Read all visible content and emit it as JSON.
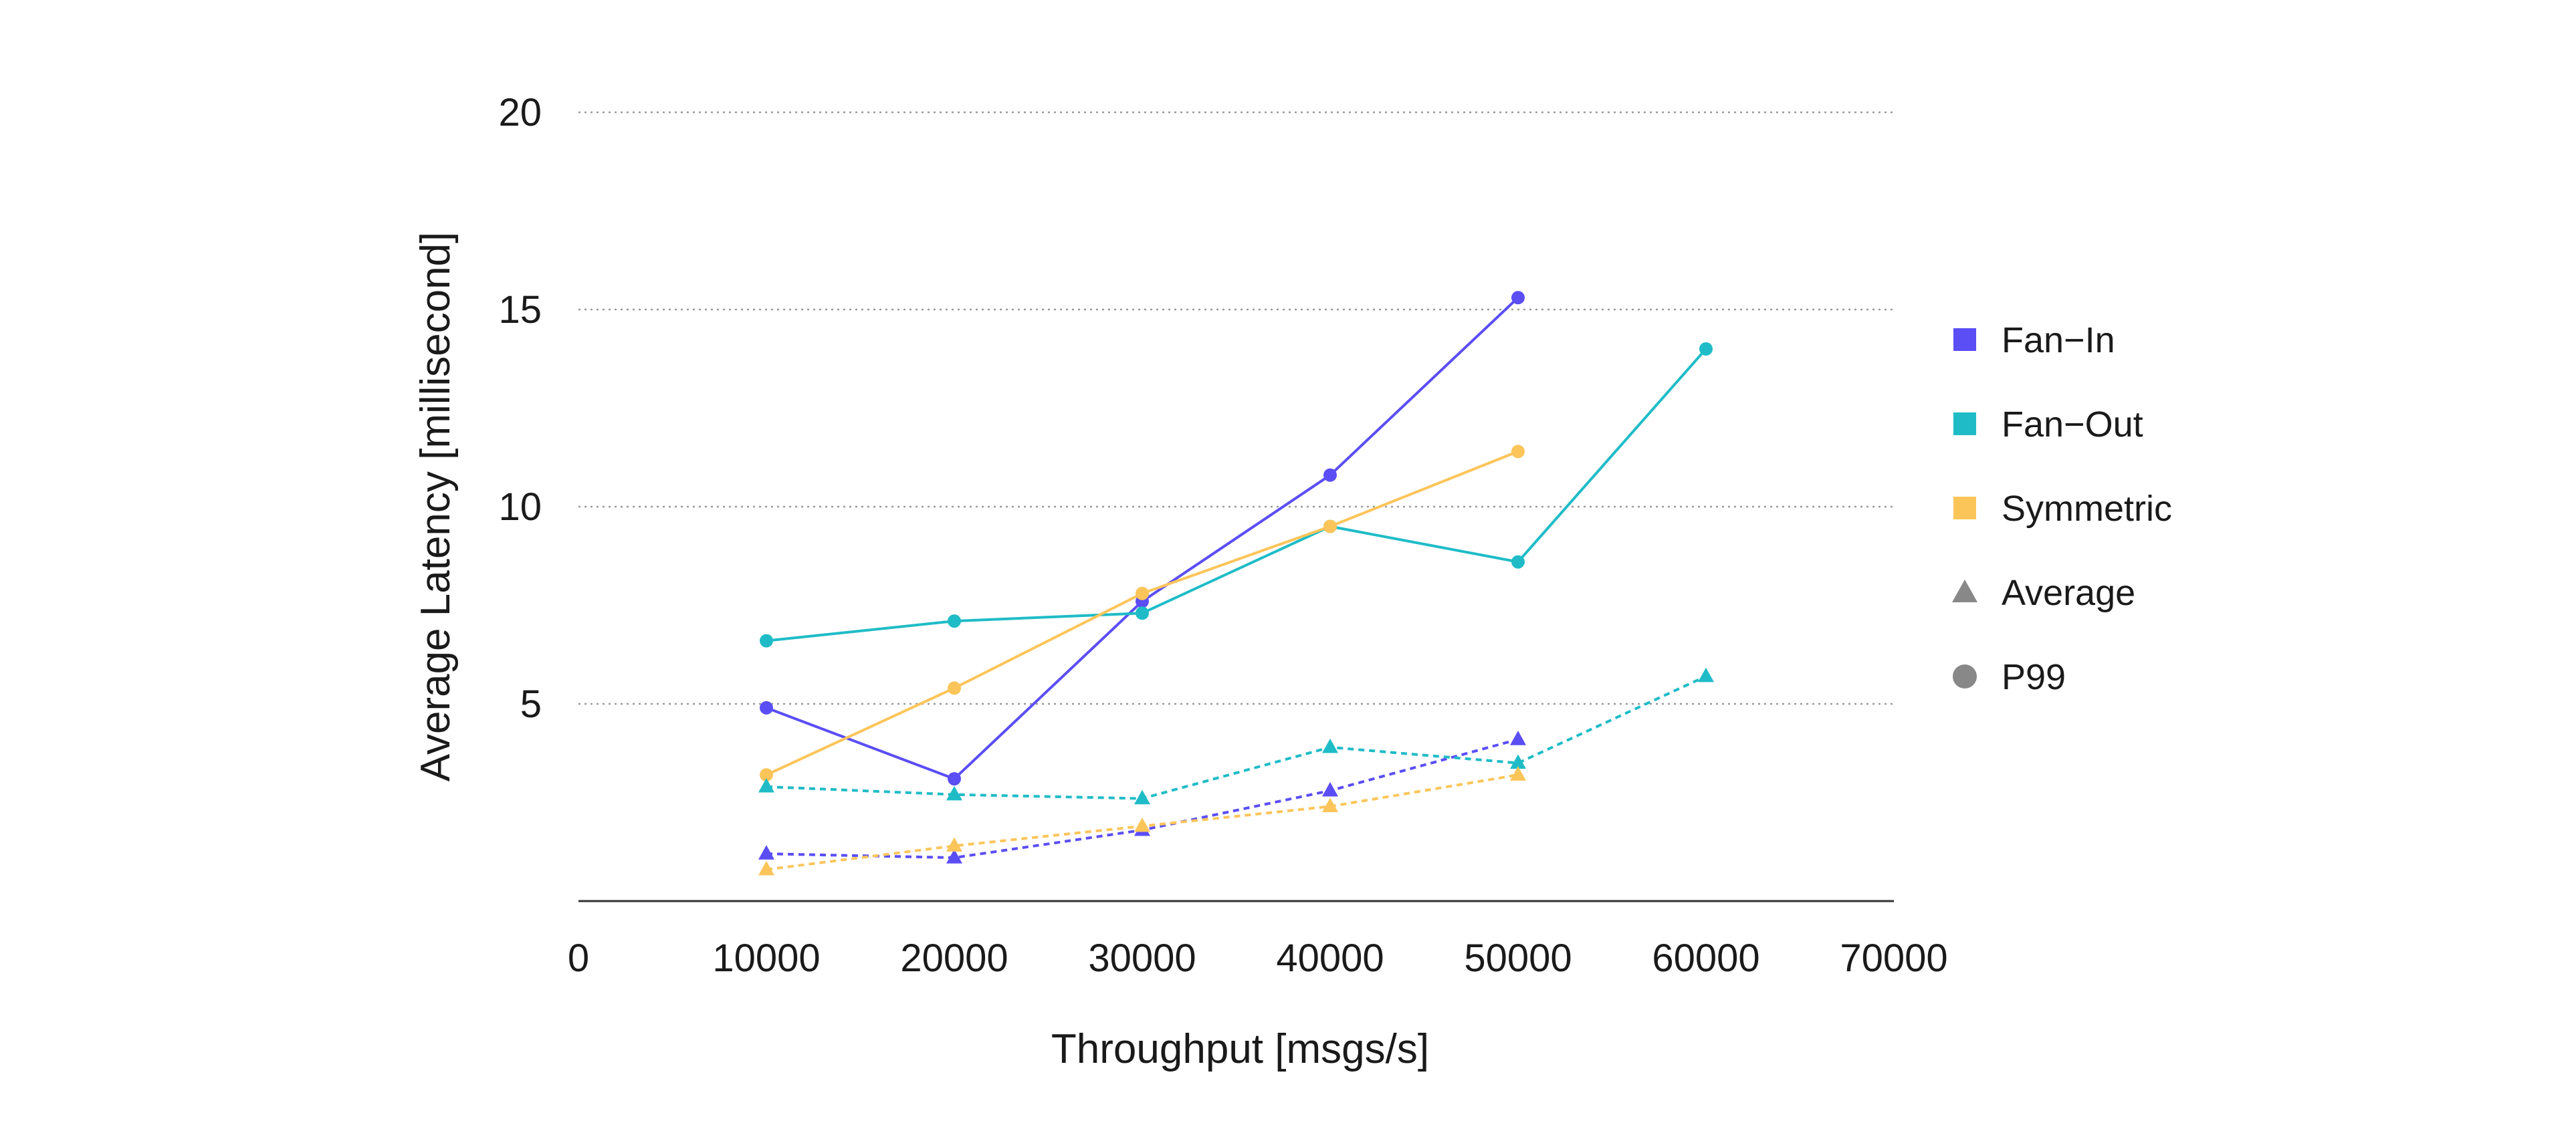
{
  "chart_data": {
    "type": "line",
    "xlabel": "Throughput [msgs/s]",
    "ylabel": "Average Latency [millisecond]",
    "xlim": [
      0,
      70000
    ],
    "ylim": [
      0,
      20
    ],
    "xticks": [
      0,
      10000,
      20000,
      30000,
      40000,
      50000,
      60000,
      70000
    ],
    "yticks": [
      5,
      10,
      15,
      20
    ],
    "grid": "horizontal dotted",
    "legend_position": "right",
    "legend": [
      {
        "label": "Fan−In",
        "marker": "square",
        "color": "#5b4ef5"
      },
      {
        "label": "Fan−Out",
        "marker": "square",
        "color": "#1fbcc7"
      },
      {
        "label": "Symmetric",
        "marker": "square",
        "color": "#fcc55a"
      },
      {
        "label": "Average",
        "marker": "triangle",
        "color": "#888888"
      },
      {
        "label": "P99",
        "marker": "circle",
        "color": "#888888"
      }
    ],
    "series": [
      {
        "group": "Fan-In",
        "metric": "P99",
        "color": "#5b4ef5",
        "marker": "circle",
        "dash": "solid",
        "x": [
          10000,
          20000,
          30000,
          40000,
          50000
        ],
        "y": [
          4.9,
          3.1,
          7.6,
          10.8,
          15.3
        ]
      },
      {
        "group": "Fan-Out",
        "metric": "P99",
        "color": "#1fbcc7",
        "marker": "circle",
        "dash": "solid",
        "x": [
          10000,
          20000,
          30000,
          40000,
          50000,
          60000
        ],
        "y": [
          6.6,
          7.1,
          7.3,
          9.5,
          8.6,
          14.0
        ]
      },
      {
        "group": "Symmetric",
        "metric": "P99",
        "color": "#fcc55a",
        "marker": "circle",
        "dash": "solid",
        "x": [
          10000,
          20000,
          30000,
          40000,
          50000
        ],
        "y": [
          3.2,
          5.4,
          7.8,
          9.5,
          11.4
        ]
      },
      {
        "group": "Fan-In",
        "metric": "Average",
        "color": "#5b4ef5",
        "marker": "triangle",
        "dash": "dotted",
        "x": [
          10000,
          20000,
          30000,
          40000,
          50000
        ],
        "y": [
          1.2,
          1.1,
          1.8,
          2.8,
          4.1
        ]
      },
      {
        "group": "Fan-Out",
        "metric": "Average",
        "color": "#1fbcc7",
        "marker": "triangle",
        "dash": "dotted",
        "x": [
          10000,
          20000,
          30000,
          40000,
          50000,
          60000
        ],
        "y": [
          2.9,
          2.7,
          2.6,
          3.9,
          3.5,
          5.7
        ]
      },
      {
        "group": "Symmetric",
        "metric": "Average",
        "color": "#fcc55a",
        "marker": "triangle",
        "dash": "dotted",
        "x": [
          10000,
          20000,
          30000,
          40000,
          50000
        ],
        "y": [
          0.8,
          1.4,
          1.9,
          2.4,
          3.2
        ]
      }
    ]
  }
}
